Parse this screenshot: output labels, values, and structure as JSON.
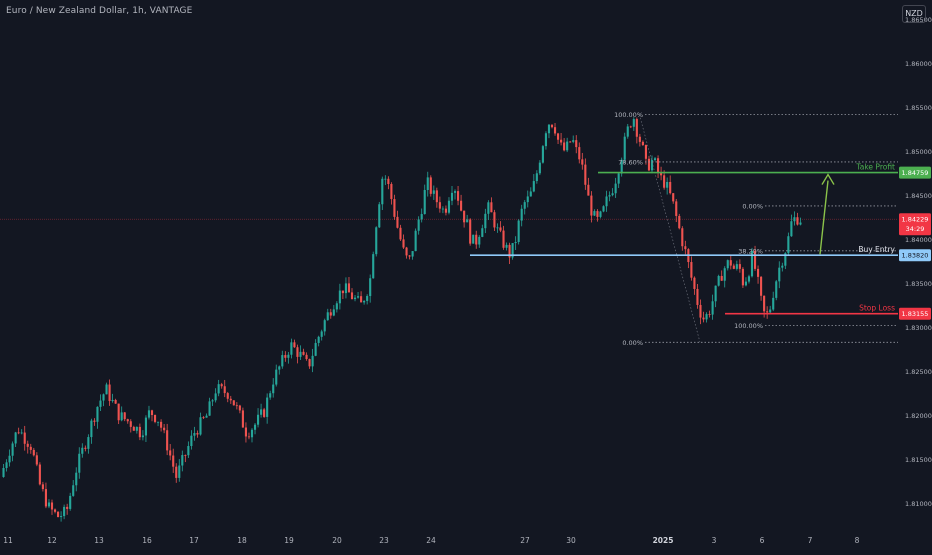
{
  "header": {
    "symbol_title": "Euro / New Zealand Dollar, 1h, VANTAGE",
    "currency": "NZD"
  },
  "chart_data": {
    "type": "candlestick",
    "symbol": "EUR/NZD",
    "timeframe": "1h",
    "broker": "VANTAGE",
    "ylim": [
      1.8072,
      1.8672
    ],
    "y_ticks": [
      "1.86500",
      "1.86000",
      "1.85500",
      "1.85000",
      "1.84500",
      "1.84000",
      "1.83500",
      "1.83000",
      "1.82500",
      "1.82000",
      "1.81500",
      "1.81000"
    ],
    "x_ticks": [
      "11",
      "12",
      "13",
      "16",
      "17",
      "18",
      "19",
      "20",
      "23",
      "24",
      "27",
      "30",
      "2025",
      "3",
      "6",
      "7",
      "8"
    ],
    "price_path": [
      [
        0,
        1.813
      ],
      [
        2,
        1.816
      ],
      [
        4,
        1.8185
      ],
      [
        7,
        1.8165
      ],
      [
        9,
        1.812
      ],
      [
        11,
        1.8095
      ],
      [
        13,
        1.8085
      ],
      [
        15,
        1.809
      ],
      [
        17,
        1.8135
      ],
      [
        20,
        1.818
      ],
      [
        22,
        1.821
      ],
      [
        24,
        1.823
      ],
      [
        27,
        1.82
      ],
      [
        30,
        1.819
      ],
      [
        32,
        1.818
      ],
      [
        34,
        1.8205
      ],
      [
        36,
        1.8195
      ],
      [
        38,
        1.8165
      ],
      [
        40,
        1.813
      ],
      [
        42,
        1.8155
      ],
      [
        44,
        1.818
      ],
      [
        47,
        1.82
      ],
      [
        49,
        1.823
      ],
      [
        52,
        1.8225
      ],
      [
        54,
        1.8205
      ],
      [
        56,
        1.818
      ],
      [
        58,
        1.819
      ],
      [
        60,
        1.8205
      ],
      [
        62,
        1.824
      ],
      [
        64,
        1.826
      ],
      [
        66,
        1.828
      ],
      [
        68,
        1.827
      ],
      [
        70,
        1.8255
      ],
      [
        72,
        1.8285
      ],
      [
        74,
        1.831
      ],
      [
        76,
        1.833
      ],
      [
        78,
        1.8345
      ],
      [
        80,
        1.8335
      ],
      [
        82,
        1.8325
      ],
      [
        84,
        1.835
      ],
      [
        85,
        1.84
      ],
      [
        86,
        1.844
      ],
      [
        87,
        1.8475
      ],
      [
        88,
        1.8465
      ],
      [
        89,
        1.8445
      ],
      [
        90,
        1.842
      ],
      [
        91,
        1.84
      ],
      [
        92,
        1.838
      ],
      [
        93,
        1.8375
      ],
      [
        94,
        1.8395
      ],
      [
        95,
        1.842
      ],
      [
        96,
        1.844
      ],
      [
        97,
        1.8465
      ],
      [
        98,
        1.8455
      ],
      [
        99,
        1.8445
      ],
      [
        100,
        1.844
      ],
      [
        101,
        1.843
      ],
      [
        102,
        1.845
      ],
      [
        103,
        1.8465
      ],
      [
        104,
        1.845
      ],
      [
        105,
        1.843
      ],
      [
        106,
        1.842
      ],
      [
        107,
        1.84
      ],
      [
        108,
        1.8395
      ],
      [
        109,
        1.841
      ],
      [
        110,
        1.8425
      ],
      [
        111,
        1.8435
      ],
      [
        112,
        1.8425
      ],
      [
        113,
        1.841
      ],
      [
        114,
        1.84
      ],
      [
        115,
        1.839
      ],
      [
        116,
        1.8382
      ],
      [
        117,
        1.8395
      ],
      [
        118,
        1.842
      ],
      [
        119,
        1.844
      ],
      [
        120,
        1.8445
      ],
      [
        121,
        1.8455
      ],
      [
        122,
        1.8475
      ],
      [
        123,
        1.85
      ],
      [
        124,
        1.8525
      ],
      [
        125,
        1.8535
      ],
      [
        126,
        1.853
      ],
      [
        127,
        1.851
      ],
      [
        128,
        1.85
      ],
      [
        129,
        1.8505
      ],
      [
        130,
        1.8515
      ],
      [
        131,
        1.85
      ],
      [
        132,
        1.849
      ],
      [
        133,
        1.8465
      ],
      [
        134,
        1.844
      ],
      [
        135,
        1.8425
      ],
      [
        136,
        1.842
      ],
      [
        137,
        1.843
      ],
      [
        138,
        1.8445
      ],
      [
        139,
        1.8455
      ],
      [
        140,
        1.847
      ],
      [
        141,
        1.849
      ],
      [
        142,
        1.851
      ],
      [
        143,
        1.853
      ],
      [
        144,
        1.854
      ],
      [
        145,
        1.852
      ],
      [
        146,
        1.8505
      ],
      [
        147,
        1.848
      ],
      [
        148,
        1.849
      ],
      [
        149,
        1.8485
      ],
      [
        150,
        1.847
      ],
      [
        151,
        1.8465
      ],
      [
        152,
        1.8455
      ],
      [
        153,
        1.844
      ],
      [
        154,
        1.842
      ],
      [
        155,
        1.84
      ],
      [
        156,
        1.8382
      ],
      [
        157,
        1.836
      ],
      [
        158,
        1.834
      ],
      [
        159,
        1.832
      ],
      [
        160,
        1.831
      ],
      [
        161,
        1.8315
      ],
      [
        162,
        1.833
      ],
      [
        163,
        1.8345
      ],
      [
        164,
        1.836
      ],
      [
        165,
        1.837
      ],
      [
        166,
        1.8375
      ],
      [
        167,
        1.8365
      ],
      [
        168,
        1.837
      ],
      [
        169,
        1.835
      ],
      [
        170,
        1.836
      ],
      [
        171,
        1.838
      ],
      [
        172,
        1.836
      ],
      [
        173,
        1.833
      ],
      [
        174,
        1.831
      ],
      [
        175,
        1.832
      ],
      [
        176,
        1.8345
      ],
      [
        177,
        1.8365
      ],
      [
        178,
        1.838
      ],
      [
        179,
        1.8395
      ],
      [
        180,
        1.842
      ],
      [
        181,
        1.8425
      ],
      [
        182,
        1.8423
      ]
    ],
    "current_price": "1.84229",
    "countdown": "34:29",
    "levels": [
      {
        "key": "take_profit",
        "name": "Take Profit",
        "price": 1.84759,
        "label": "1.84759",
        "color": "#4caf50"
      },
      {
        "key": "buy_entry",
        "name": "Buy Entry",
        "price": 1.8382,
        "label": "1.83820",
        "color": "#90caf9"
      },
      {
        "key": "stop_loss",
        "name": "Stop Loss",
        "price": 1.83155,
        "label": "1.83155",
        "color": "#f23645"
      }
    ],
    "fib_left": {
      "levels": [
        {
          "ratio": "100.00%",
          "price": 1.8542
        },
        {
          "ratio": "78.60%",
          "price": 1.8488
        },
        {
          "ratio": "0.00%",
          "price": 1.8283
        }
      ]
    },
    "fib_right": {
      "levels": [
        {
          "ratio": "0.00%",
          "price": 1.8438
        },
        {
          "ratio": "38.20%",
          "price": 1.8387
        },
        {
          "ratio": "100.00%",
          "price": 1.8302
        }
      ]
    },
    "colors": {
      "background": "#131722",
      "up": "#26a69a",
      "down": "#ef5350",
      "current_price": "#f23645",
      "arrow": "#8bc34a",
      "axis_text": "#b2b5be"
    }
  }
}
